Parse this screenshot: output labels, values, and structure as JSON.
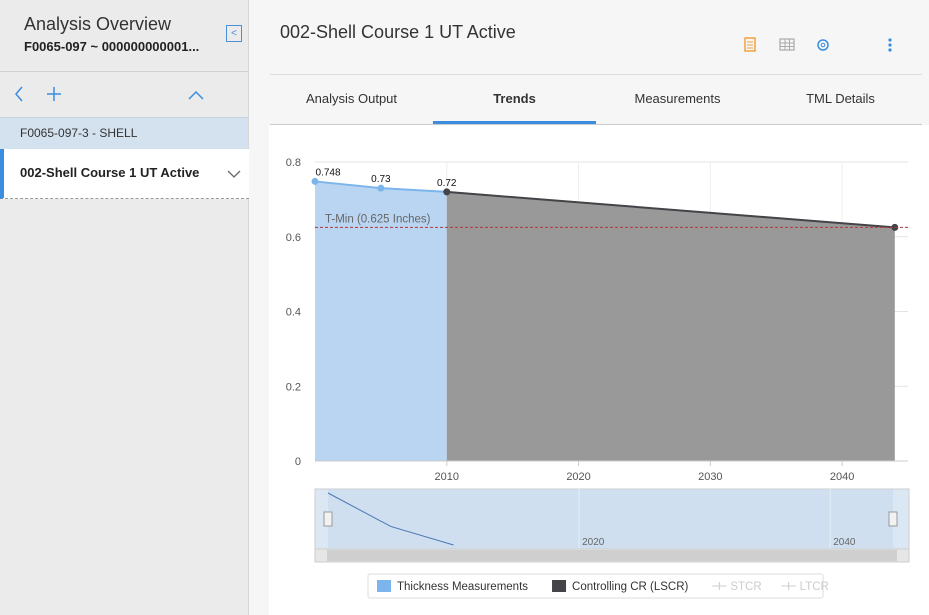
{
  "sidebar": {
    "title": "Analysis Overview",
    "subtitle": "F0065-097 ~ 000000000001...",
    "items": [
      "F0065-097-3 - SHELL",
      "002-Shell Course 1 UT Active"
    ]
  },
  "header": {
    "title": "002-Shell Course 1 UT Active"
  },
  "tabs": {
    "items": [
      "Analysis Output",
      "Trends",
      "Measurements",
      "TML Details"
    ],
    "active": 1
  },
  "chart_data": {
    "type": "area",
    "xlim": [
      2000,
      2045
    ],
    "xticks": [
      2010,
      2020,
      2030,
      2040
    ],
    "ylim": [
      0,
      0.8
    ],
    "yticks": [
      0,
      0.2,
      0.4,
      0.6,
      0.8
    ],
    "grid": true,
    "series": [
      {
        "name": "Thickness Measurements",
        "color": "#7cb5ec",
        "fill": "#b9d5f1",
        "labels": true,
        "x": [
          2000,
          2005,
          2010
        ],
        "values": [
          0.748,
          0.73,
          0.72
        ]
      },
      {
        "name": "Controlling CR (LSCR)",
        "color": "#434348",
        "fill": "#999999",
        "labels": false,
        "x": [
          2010,
          2044
        ],
        "values": [
          0.72,
          0.625
        ]
      }
    ],
    "threshold": {
      "label": "T-Min (0.625 Inches)",
      "value": 0.625,
      "color": "#b03a3a"
    },
    "inactive_legend": [
      "STCR",
      "LTCR"
    ]
  }
}
